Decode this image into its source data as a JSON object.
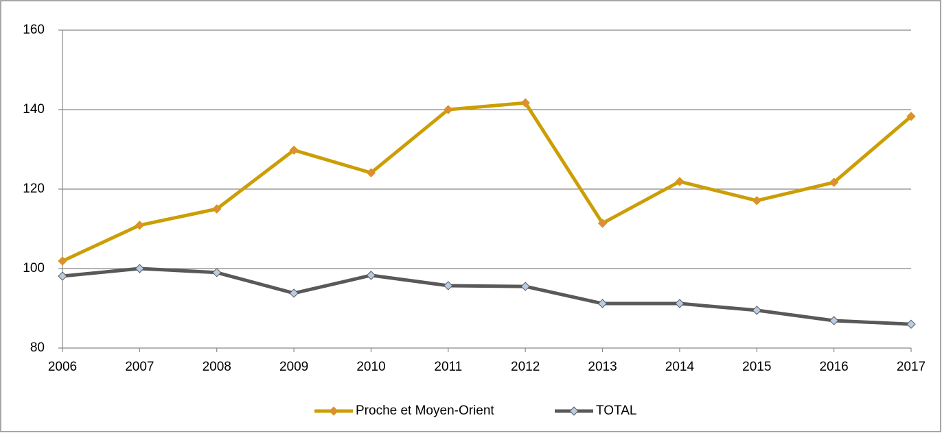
{
  "chart_data": {
    "type": "line",
    "categories": [
      "2006",
      "2007",
      "2008",
      "2009",
      "2010",
      "2011",
      "2012",
      "2013",
      "2014",
      "2015",
      "2016",
      "2017"
    ],
    "series": [
      {
        "name": "Proche et Moyen-Orient",
        "color": "#CC9E06",
        "marker_color": "#E38A3C",
        "values": [
          101.9,
          110.9,
          115,
          129.8,
          124.1,
          140,
          141.7,
          111.4,
          121.9,
          117.1,
          121.7,
          138.3
        ]
      },
      {
        "name": "TOTAL",
        "color": "#595959",
        "marker_color": "#B8CCE4",
        "values": [
          98.1,
          100,
          99,
          93.8,
          98.3,
          95.7,
          95.5,
          91.2,
          91.2,
          89.5,
          86.9,
          86
        ]
      }
    ],
    "ylim": [
      80,
      160
    ],
    "yticks": [
      80,
      100,
      120,
      140,
      160
    ],
    "grid": true,
    "legend": "bottom"
  }
}
